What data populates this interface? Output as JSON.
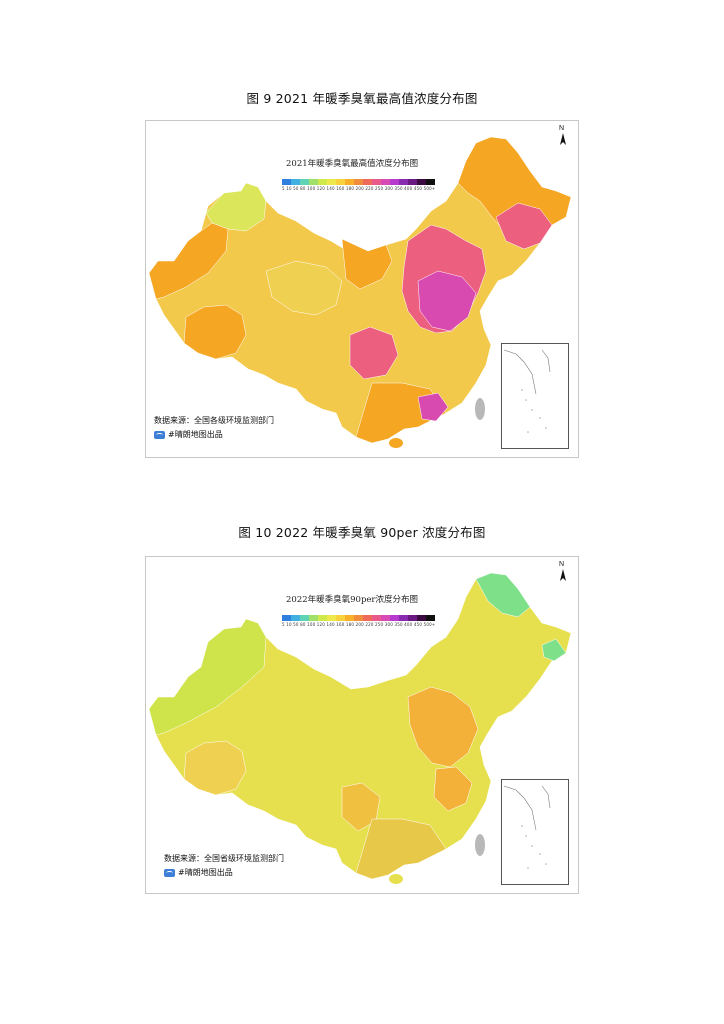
{
  "figure1": {
    "caption": "图 9 2021 年暖季臭氧最高值浓度分布图",
    "map_title": "2021年暖季臭氧最高值浓度分布图",
    "legend_labels": "5 10 50 80 100 120 140 160 180 200 220 250 300 350 400 450 500+",
    "legend_colors": [
      "#2f7fe0",
      "#3fb0e0",
      "#5fd4b4",
      "#9ee06a",
      "#cfe84a",
      "#efe84a",
      "#f8d23c",
      "#f8b02a",
      "#f08c3a",
      "#ee6a5a",
      "#e85a8a",
      "#d84ab4",
      "#b63ad0",
      "#8a2ab0",
      "#6a1a80",
      "#3a0a40",
      "#101010"
    ],
    "data_source": "数据来源：全国各级环境监测部门",
    "publisher": "#晴朗地图出品"
  },
  "figure2": {
    "caption": "图 10 2022 年暖季臭氧 90per 浓度分布图",
    "map_title": "2022年暖季臭氧90per浓度分布图",
    "legend_labels": "5 10 50 80 100 120 140 160 180 200 220 250 300 350 400 450 500+",
    "legend_colors": [
      "#2f7fe0",
      "#3fb0e0",
      "#5fd4b4",
      "#9ee06a",
      "#cfe84a",
      "#efe84a",
      "#f8d23c",
      "#f8b02a",
      "#f08c3a",
      "#ee6a5a",
      "#e85a8a",
      "#d84ab4",
      "#b63ad0",
      "#8a2ab0",
      "#6a1a80",
      "#3a0a40",
      "#101010"
    ],
    "data_source": "数据来源：全国省级环境监测部门",
    "publisher": "#晴朗地图出品"
  },
  "north_label": "N",
  "colors": {
    "map1_base": "#f2c94a",
    "map1_orange": "#f5a623",
    "map1_pink": "#ec5f7e",
    "map1_magenta": "#d94ab0",
    "map1_yellow_green": "#dbe65a",
    "map2_base": "#e6e04e",
    "map2_yellow_green": "#cfe34a",
    "map2_orange": "#f3b13a",
    "map2_green": "#7fe08a"
  }
}
